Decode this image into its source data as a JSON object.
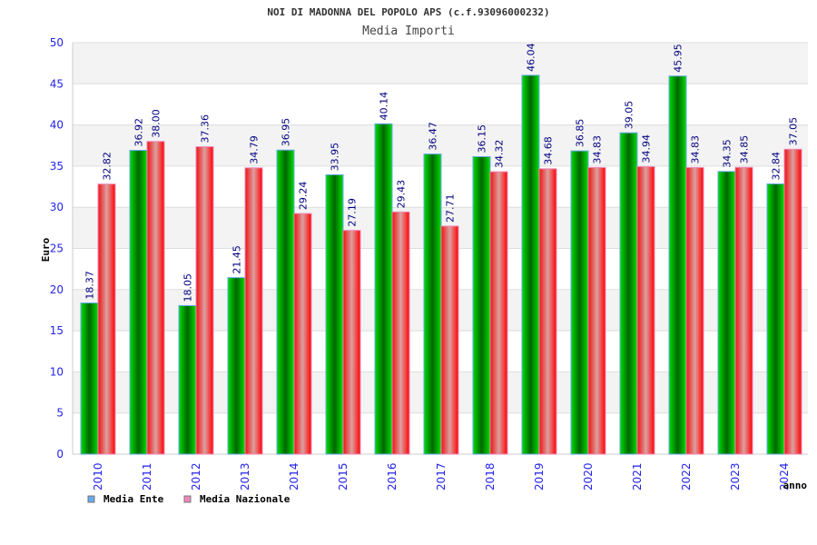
{
  "chart_data": {
    "type": "bar",
    "title": "NOI DI MADONNA DEL POPOLO APS (c.f.93096000232)",
    "subtitle": "Media Importi",
    "xlabel": "anno",
    "ylabel": "Euro",
    "ylim": [
      0,
      50
    ],
    "yticks": [
      "0",
      "5",
      "10",
      "15",
      "20",
      "25",
      "30",
      "35",
      "40",
      "45",
      "50"
    ],
    "grid": true,
    "legend_position": "bottom-left",
    "categories": [
      "2010",
      "2011",
      "2012",
      "2013",
      "2014",
      "2015",
      "2016",
      "2017",
      "2018",
      "2019",
      "2020",
      "2021",
      "2022",
      "2023",
      "2024"
    ],
    "series": [
      {
        "name": "Media Ente",
        "color": "#66aaee",
        "values": [
          18.37,
          36.92,
          18.05,
          21.45,
          36.95,
          33.95,
          40.14,
          36.47,
          36.15,
          46.04,
          36.85,
          39.05,
          45.95,
          34.35,
          32.84
        ]
      },
      {
        "name": "Media Nazionale",
        "color": "#ee88bb",
        "values": [
          32.82,
          38.0,
          37.36,
          34.79,
          29.24,
          27.19,
          29.43,
          27.71,
          34.32,
          34.68,
          34.83,
          34.94,
          34.83,
          34.85,
          37.05
        ]
      }
    ]
  }
}
